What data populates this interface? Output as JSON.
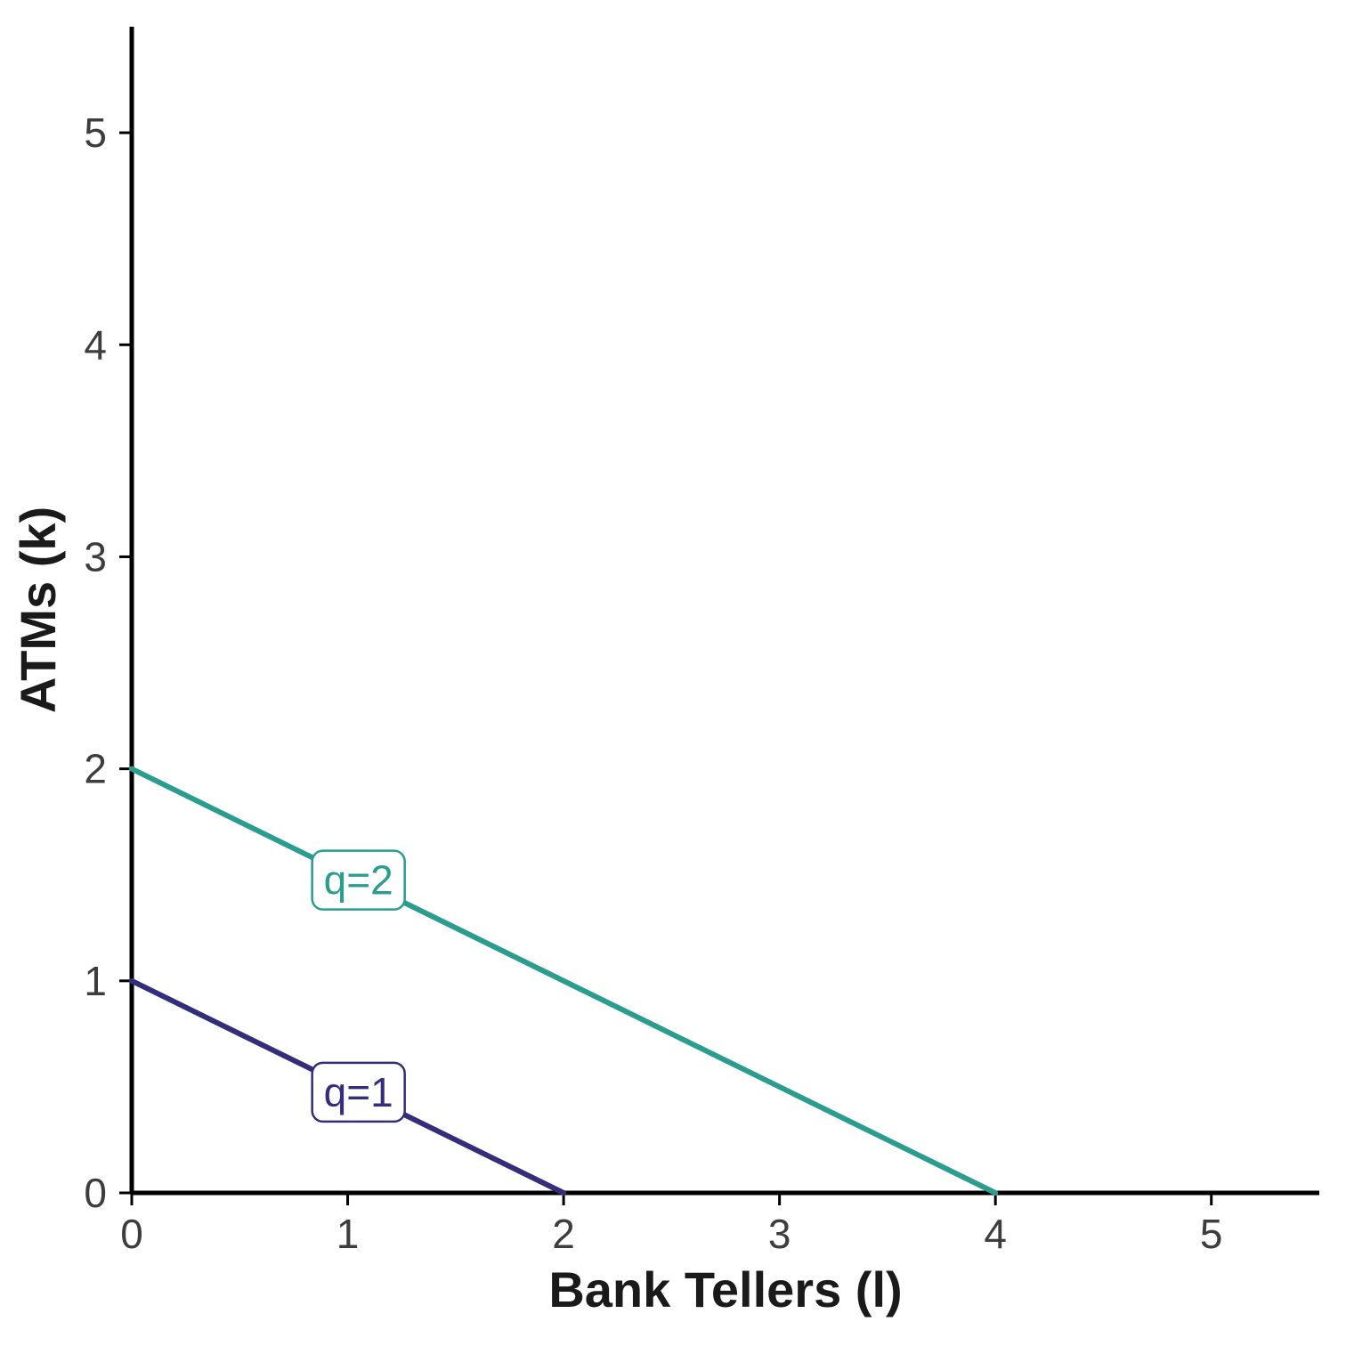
{
  "chart_data": {
    "type": "line",
    "title": "",
    "xlabel": "Bank Tellers (l)",
    "ylabel": "ATMs (k)",
    "xlim": [
      0,
      5.5
    ],
    "ylim": [
      0,
      5.5
    ],
    "xticks": [
      0,
      1,
      2,
      3,
      4,
      5
    ],
    "yticks": [
      0,
      1,
      2,
      3,
      4,
      5
    ],
    "grid": false,
    "legend_position": "on-line-labels",
    "axis_color": "#000000",
    "tick_label_color": "#3d3d3d",
    "axis_label_color": "#1a1a1a",
    "series": [
      {
        "name": "q=2",
        "color": "#2a9d8f",
        "points": [
          [
            0,
            2
          ],
          [
            4,
            0
          ]
        ],
        "label": {
          "text": "q=2",
          "x": 1.05,
          "y": 1.475
        }
      },
      {
        "name": "q=1",
        "color": "#332d7b",
        "points": [
          [
            0,
            1
          ],
          [
            2,
            0
          ]
        ],
        "label": {
          "text": "q=1",
          "x": 1.05,
          "y": 0.475
        }
      }
    ]
  }
}
